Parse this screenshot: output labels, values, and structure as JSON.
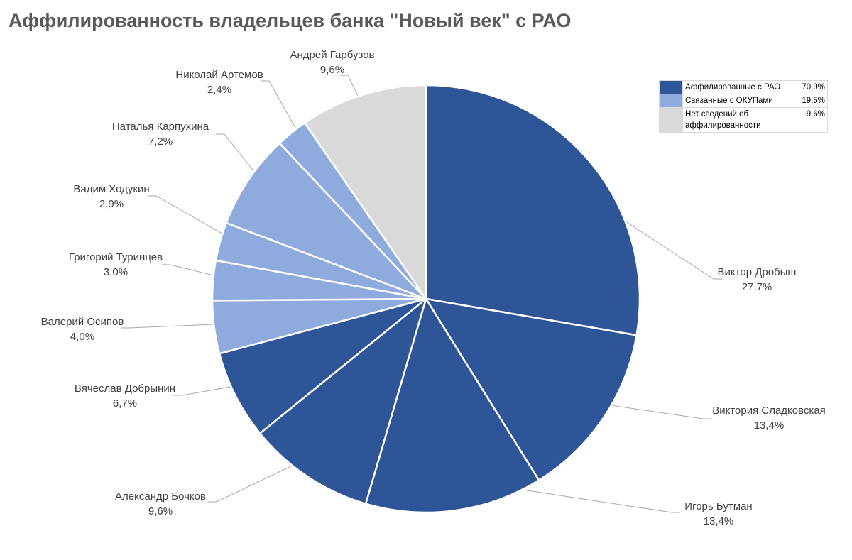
{
  "chart_data": {
    "type": "pie",
    "title": "Аффилированность владельцев банка \"Новый век\" с РАО",
    "colors": {
      "affiliated": "#2e5597",
      "okup": "#8faadc",
      "unknown": "#d9d9d9"
    },
    "slices": [
      {
        "name": "Виктор Дробыш",
        "label": "27,7%",
        "value": 27.7,
        "group": "affiliated"
      },
      {
        "name": "Виктория Сладковская",
        "label": "13,4%",
        "value": 13.4,
        "group": "affiliated"
      },
      {
        "name": "Игорь Бутман",
        "label": "13,4%",
        "value": 13.4,
        "group": "affiliated"
      },
      {
        "name": "Александр Бочков",
        "label": "9,6%",
        "value": 9.6,
        "group": "affiliated"
      },
      {
        "name": "Вячеслав Добрынин",
        "label": "6,7%",
        "value": 6.7,
        "group": "affiliated"
      },
      {
        "name": "Валерий Осипов",
        "label": "4,0%",
        "value": 4.0,
        "group": "okup"
      },
      {
        "name": "Григорий Туринцев",
        "label": "3,0%",
        "value": 3.0,
        "group": "okup"
      },
      {
        "name": "Вадим Ходукин",
        "label": "2,9%",
        "value": 2.9,
        "group": "okup"
      },
      {
        "name": "Наталья Карпухина",
        "label": "7,2%",
        "value": 7.2,
        "group": "okup"
      },
      {
        "name": "Николай Артемов",
        "label": "2,4%",
        "value": 2.4,
        "group": "okup"
      },
      {
        "name": "Андрей Гарбузов",
        "label": "9,6%",
        "value": 9.6,
        "group": "unknown"
      }
    ],
    "legend": {
      "placement": "top-right",
      "entries": [
        {
          "group": "affiliated",
          "text": "Аффилированные с РАО",
          "value": "70,9%"
        },
        {
          "group": "okup",
          "text": "Связанные с ОКУПами",
          "value": "19,5%"
        },
        {
          "group": "unknown",
          "text": "Нет сведений об аффилированности",
          "value": "9,6%"
        }
      ]
    }
  }
}
